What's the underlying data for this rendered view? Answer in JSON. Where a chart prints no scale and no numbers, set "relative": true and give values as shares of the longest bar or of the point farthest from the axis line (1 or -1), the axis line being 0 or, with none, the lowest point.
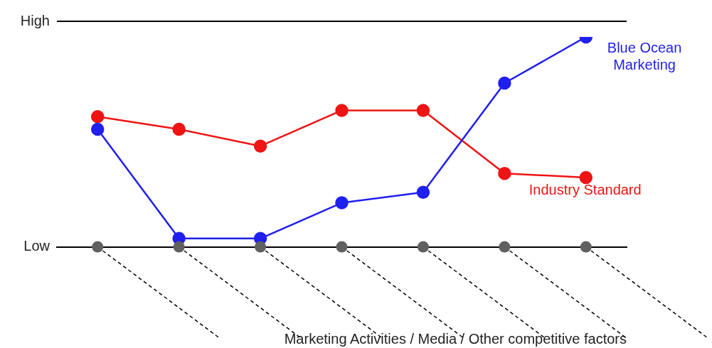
{
  "chart_data": {
    "type": "line",
    "annotations": [
      "High",
      "Low",
      "Marketing Activities / Media / Other competitive factors"
    ],
    "categories": [
      null,
      null,
      null,
      null,
      null,
      null,
      null
    ],
    "series": [
      {
        "name": "Blue Ocean Marketing",
        "color": "#1f1fef",
        "values": [
          0.56,
          0.04,
          0.04,
          0.21,
          0.26,
          0.78,
          1
        ]
      },
      {
        "name": "Industry Standard",
        "color": "#ef1414",
        "values": [
          0.62,
          0.56,
          0.48,
          0.65,
          0.65,
          0.35,
          0.33
        ]
      }
    ],
    "relative": true,
    "legend": "right",
    "marker": "circle",
    "line_style": "solid"
  }
}
